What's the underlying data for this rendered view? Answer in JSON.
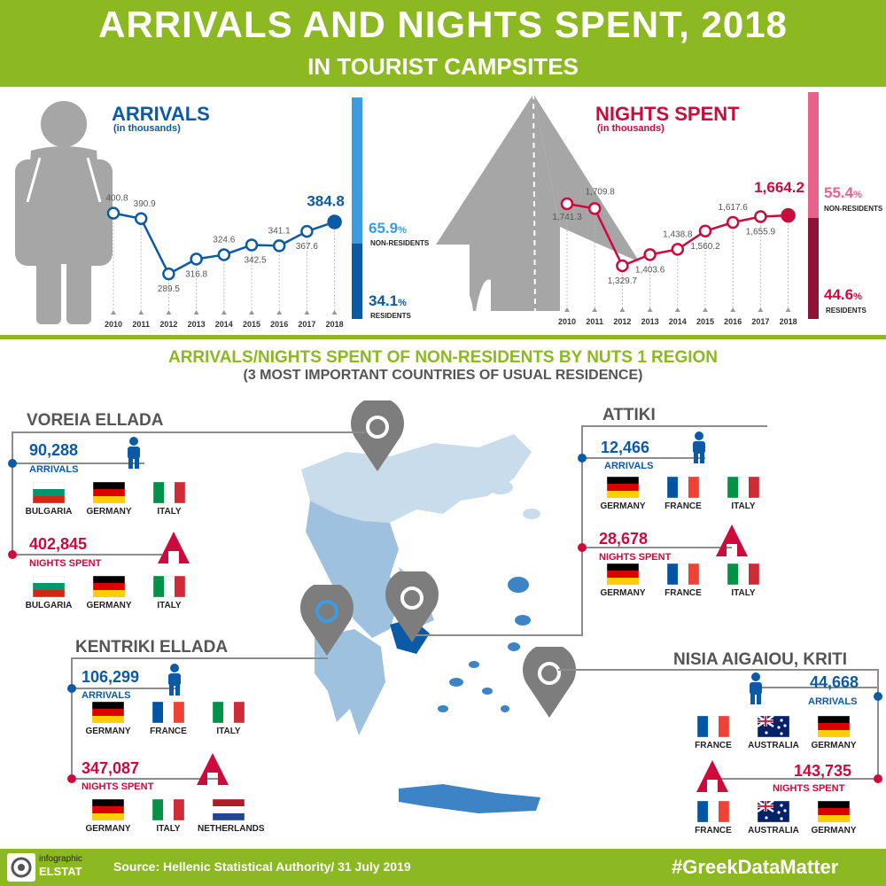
{
  "header": {
    "title": "ARRIVALS AND NIGHTS SPENT, 2018",
    "subtitle": "IN TOURIST CAMPSITES"
  },
  "arrivals": {
    "title": "ARRIVALS",
    "unit": "(in thousands)",
    "years": [
      "2010",
      "2011",
      "2012",
      "2013",
      "2014",
      "2015",
      "2016",
      "2017",
      "2018"
    ],
    "values": [
      400.8,
      390.9,
      289.5,
      316.8,
      324.6,
      342.5,
      341.1,
      367.6,
      384.8
    ],
    "labels": [
      "400.8",
      "390.9",
      "289.5",
      "316.8",
      "324.6",
      "342.5",
      "341.1",
      "367.6",
      "384.8"
    ],
    "non_residents_pct": "65.9",
    "non_residents_label": "NON-RESIDENTS",
    "residents_pct": "34.1",
    "residents_label": "RESIDENTS",
    "pct_sign": "%",
    "non_residents_share": 0.659
  },
  "nights": {
    "title": "NIGHTS SPENT",
    "unit": "(in thousands)",
    "years": [
      "2010",
      "2011",
      "2012",
      "2013",
      "2014",
      "2015",
      "2016",
      "2017",
      "2018"
    ],
    "values": [
      1741.3,
      1709.8,
      1329.7,
      1403.6,
      1438.8,
      1560.2,
      1617.6,
      1655.9,
      1664.2
    ],
    "labels": [
      "1,741.3",
      "1,709.8",
      "1,329.7",
      "1,403.6",
      "1,438.8",
      "1,560.2",
      "1,617.6",
      "1,655.9",
      "1,664.2"
    ],
    "non_residents_pct": "55.4",
    "non_residents_label": "NON-RESIDENTS",
    "residents_pct": "44.6",
    "residents_label": "RESIDENTS",
    "pct_sign": "%",
    "non_residents_share": 0.554
  },
  "regions_section": {
    "title": "ARRIVALS/NIGHTS SPENT OF NON-RESIDENTS BY NUTS 1 REGION",
    "subtitle": "(3 MOST IMPORTANT COUNTRIES OF USUAL RESIDENCE)"
  },
  "labels": {
    "arrivals": "ARRIVALS",
    "nights": "NIGHTS SPENT"
  },
  "regions": {
    "voreia": {
      "name": "VOREIA ELLADA",
      "arrivals": "90,288",
      "arrivals_countries": [
        "BULGARIA",
        "GERMANY",
        "ITALY"
      ],
      "nights": "402,845",
      "nights_countries": [
        "BULGARIA",
        "GERMANY",
        "ITALY"
      ]
    },
    "attiki": {
      "name": "ATTIKI",
      "arrivals": "12,466",
      "arrivals_countries": [
        "GERMANY",
        "FRANCE",
        "ITALY"
      ],
      "nights": "28,678",
      "nights_countries": [
        "GERMANY",
        "FRANCE",
        "ITALY"
      ]
    },
    "kentriki": {
      "name": "KENTRIKI ELLADA",
      "arrivals": "106,299",
      "arrivals_countries": [
        "GERMANY",
        "FRANCE",
        "ITALY"
      ],
      "nights": "347,087",
      "nights_countries": [
        "GERMANY",
        "ITALY",
        "NETHERLANDS"
      ]
    },
    "nisia": {
      "name": "NISIA AIGAIOU, KRITI",
      "arrivals": "44,668",
      "arrivals_countries": [
        "FRANCE",
        "AUSTRALIA",
        "GERMANY"
      ],
      "nights": "143,735",
      "nights_countries": [
        "FRANCE",
        "AUSTRALIA",
        "GERMANY"
      ]
    }
  },
  "footer": {
    "logo_top": "infographic",
    "logo_bottom": "ELSTAT",
    "source": "Source: Hellenic Statistical Authority/ 31 July 2019",
    "hashtag": "#GreekDataMatter"
  },
  "colors": {
    "green": "#8cb822",
    "blue": "#0b5aa6",
    "lightblue": "#3d9be0",
    "red": "#cc0a3c",
    "pink": "#e8628a",
    "darkred": "#8e1236",
    "gray": "#a6a6a6"
  }
}
